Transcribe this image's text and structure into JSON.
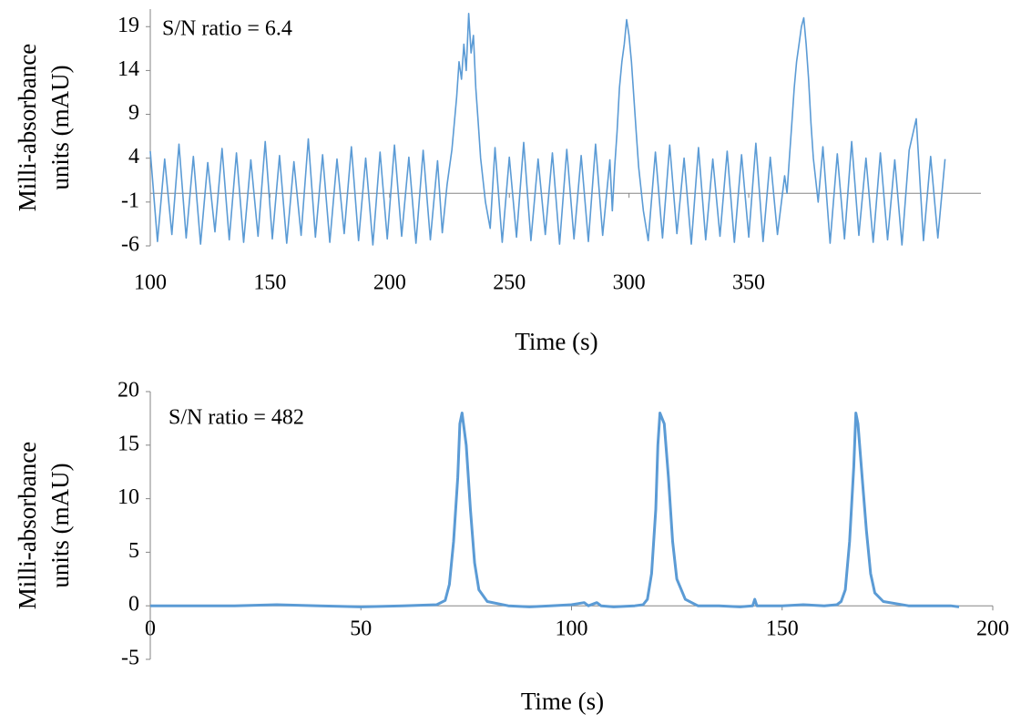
{
  "chart_data": [
    {
      "type": "line",
      "annotation": "S/N ratio = 6.4",
      "xlabel": "Time (s)",
      "ylabel": [
        "Milli-absorbance",
        "units (mAU)"
      ],
      "xlim": [
        100,
        447
      ],
      "xticks": [
        100,
        150,
        200,
        250,
        300,
        350
      ],
      "ylim": [
        -6,
        21
      ],
      "yticks": [
        -6,
        -1,
        4,
        9,
        14,
        19
      ],
      "series": [
        {
          "color": "#5b9bd5",
          "x": [
            100,
            103,
            106,
            109,
            112,
            115,
            118,
            121,
            124,
            127,
            130,
            133,
            136,
            139,
            142,
            145,
            148,
            151,
            154,
            157,
            160,
            163,
            166,
            169,
            172,
            175,
            178,
            181,
            184,
            187,
            190,
            193,
            196,
            199,
            202,
            205,
            208,
            211,
            214,
            217,
            220,
            222,
            224,
            226,
            228,
            229,
            230,
            231,
            232,
            233,
            234,
            235,
            236,
            237,
            238,
            240,
            242,
            244,
            247,
            250,
            253,
            256,
            259,
            262,
            265,
            268,
            271,
            274,
            277,
            280,
            283,
            286,
            289,
            292,
            293,
            294,
            295,
            296,
            297,
            298,
            299,
            300,
            301,
            302,
            303,
            304,
            306,
            308,
            311,
            314,
            317,
            320,
            323,
            326,
            329,
            332,
            335,
            338,
            341,
            344,
            347,
            350,
            353,
            356,
            359,
            362,
            365,
            366,
            367,
            368,
            369,
            370,
            371,
            372,
            373,
            374,
            375,
            376,
            377,
            379,
            381,
            384,
            387,
            390,
            393,
            396,
            399,
            402,
            405,
            408,
            411,
            414,
            417,
            420,
            423,
            426,
            429,
            432
          ],
          "values": [
            4.8,
            -5.5,
            3.9,
            -4.7,
            5.6,
            -5.1,
            4.2,
            -5.8,
            3.5,
            -4.4,
            5.1,
            -5.3,
            4.6,
            -5.6,
            3.8,
            -4.9,
            5.9,
            -5.2,
            4.3,
            -5.7,
            3.6,
            -4.8,
            6.2,
            -5.0,
            4.4,
            -5.6,
            3.9,
            -4.6,
            5.3,
            -5.4,
            4.0,
            -5.9,
            4.7,
            -5.2,
            5.5,
            -4.9,
            4.1,
            -5.7,
            4.9,
            -5.3,
            3.7,
            -4.5,
            1,
            5,
            11,
            15,
            13,
            17,
            14,
            20.5,
            16,
            18,
            12,
            8,
            4,
            -1,
            -4,
            5.2,
            -5.6,
            4.1,
            -5.0,
            5.8,
            -5.4,
            3.9,
            -4.7,
            4.6,
            -5.8,
            5.0,
            -5.2,
            4.3,
            -5.5,
            5.6,
            -4.8,
            3.8,
            -2,
            3,
            7,
            12,
            15,
            17,
            19.8,
            18,
            15,
            11,
            7,
            3,
            -2,
            -5.4,
            4.7,
            -5.1,
            5.5,
            -4.6,
            4.0,
            -5.8,
            5.2,
            -5.3,
            3.9,
            -4.9,
            4.8,
            -5.6,
            4.4,
            -5.0,
            5.7,
            -5.5,
            4.1,
            -4.7,
            2,
            0,
            4,
            8,
            12,
            15,
            17,
            19,
            20,
            17,
            13,
            8,
            4,
            -1,
            5.3,
            -5.7,
            4.5,
            -5.2,
            5.9,
            -4.8,
            4.0,
            -5.6,
            4.6,
            -5.3,
            3.8,
            -5.9,
            4.9,
            8.5,
            -5.4,
            4.2,
            -5.1,
            3.9
          ]
        }
      ]
    },
    {
      "type": "line",
      "annotation": "S/N ratio = 482",
      "xlabel": "Time (s)",
      "ylabel": [
        "Milli-absorbance",
        "units (mAU)"
      ],
      "xlim": [
        0,
        200
      ],
      "xticks": [
        0,
        50,
        100,
        150,
        200
      ],
      "ylim": [
        -5,
        20
      ],
      "yticks": [
        -5,
        0,
        5,
        10,
        15,
        20
      ],
      "series": [
        {
          "color": "#5b9bd5",
          "x": [
            0,
            10,
            20,
            30,
            40,
            50,
            60,
            68,
            70,
            71,
            72,
            73,
            73.5,
            74,
            75,
            76,
            77,
            78,
            80,
            85,
            90,
            95,
            100,
            103,
            104,
            106,
            107,
            110,
            115,
            117,
            118,
            119,
            120,
            120.5,
            121,
            122,
            123,
            124,
            125,
            127,
            130,
            135,
            140,
            143,
            143.5,
            144,
            150,
            155,
            160,
            163,
            164,
            165,
            166,
            167,
            167.5,
            168,
            169,
            170,
            171,
            172,
            174,
            180,
            190,
            192
          ],
          "values": [
            0,
            0,
            0,
            0.1,
            0,
            -0.1,
            0,
            0.1,
            0.5,
            2,
            6,
            12,
            17,
            18,
            15,
            9,
            4,
            1.5,
            0.4,
            0,
            -0.1,
            0,
            0.1,
            0.3,
            0,
            0.3,
            0,
            -0.1,
            0,
            0.1,
            0.6,
            3,
            9,
            15,
            18,
            17,
            12,
            6,
            2.5,
            0.6,
            0,
            0,
            -0.1,
            0,
            0.6,
            0,
            0,
            0.1,
            0,
            0.1,
            0.4,
            1.5,
            6,
            13,
            18,
            17,
            12,
            7,
            3,
            1.2,
            0.4,
            0,
            0,
            -0.1
          ]
        }
      ]
    }
  ]
}
